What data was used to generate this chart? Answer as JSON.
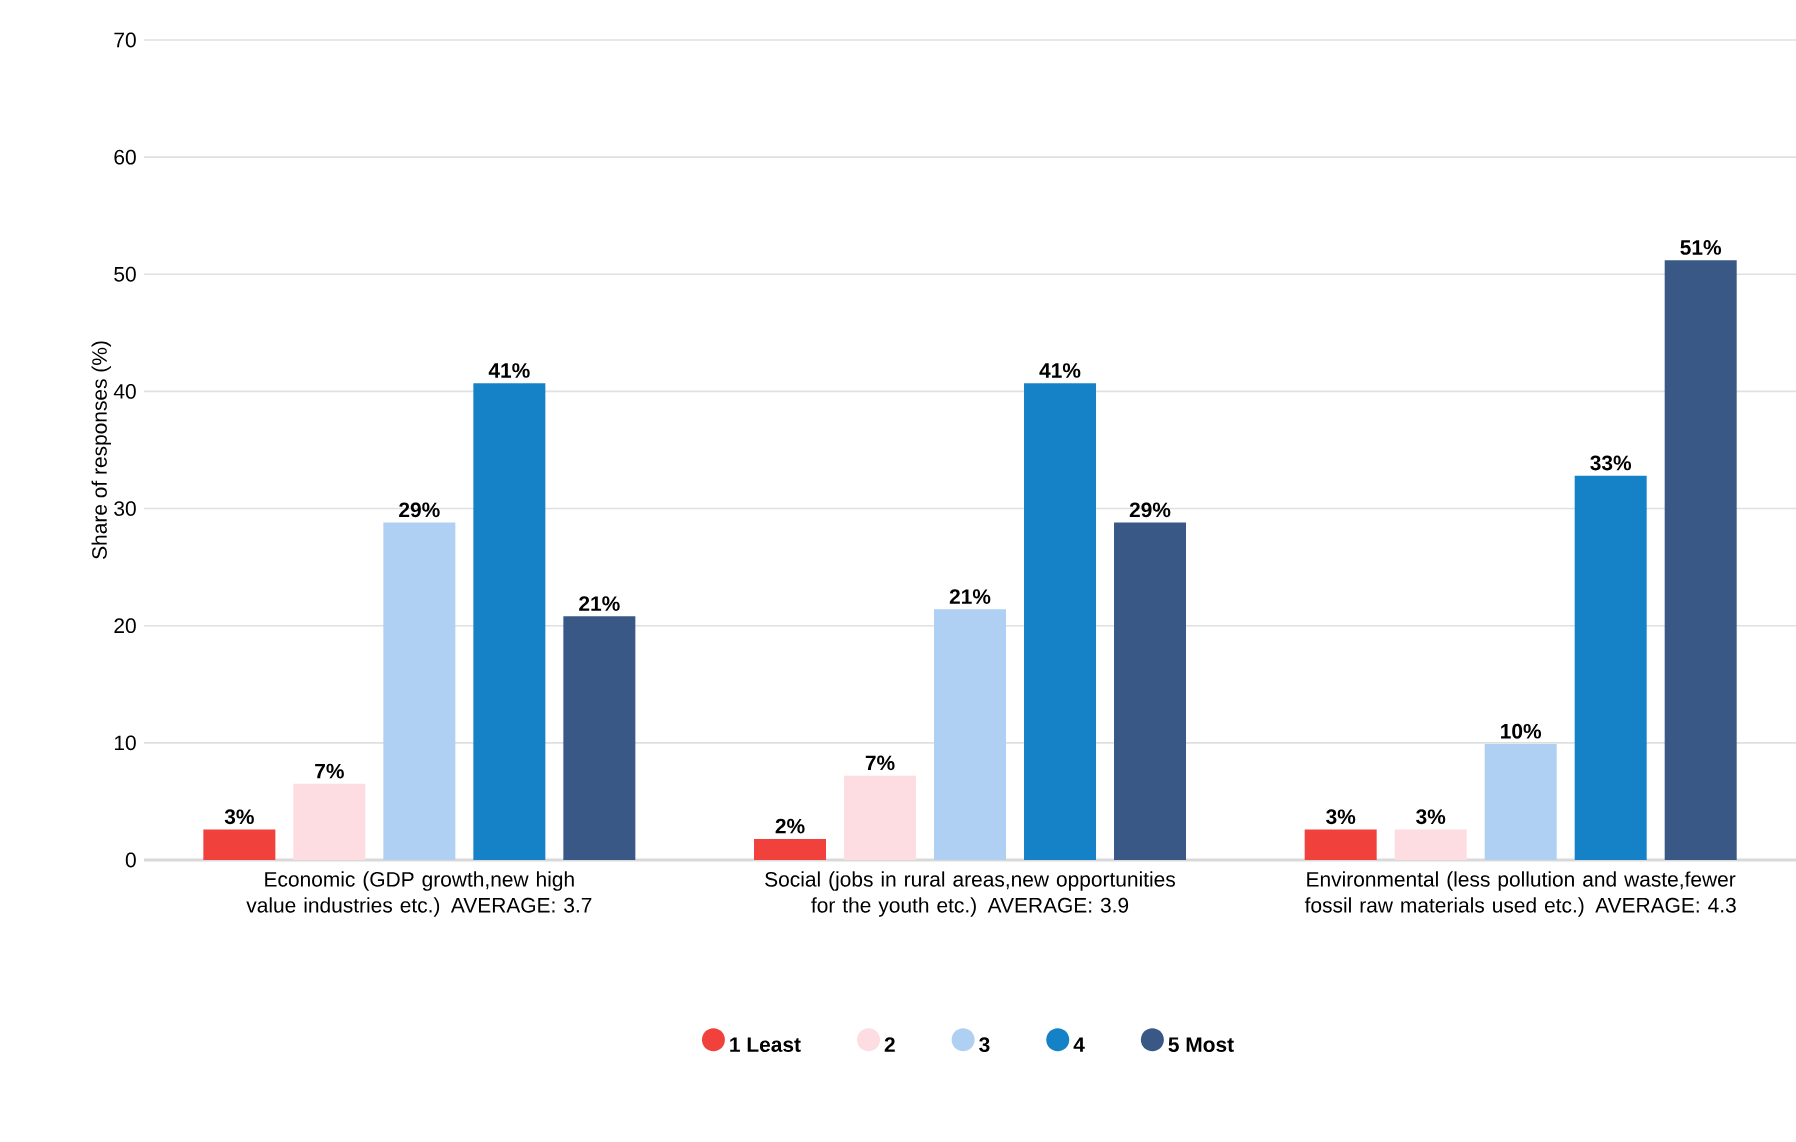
{
  "chart_data": {
    "type": "bar",
    "ylabel": "Share of responses (%)",
    "categories": [
      "Economic (GDP growth,new high value industries etc.) AVERAGE: 3.7",
      "Social (jobs in rural areas,new opportunities for the youth etc.) AVERAGE: 3.9",
      "Environmental (less pollution and waste,fewer fossil raw materials used etc.) AVERAGE: 4.3"
    ],
    "series": [
      {
        "name": "1 Least",
        "color": "#f0413c",
        "values": [
          2.6,
          1.8,
          2.6
        ],
        "value_labels": [
          "3%",
          "2%",
          "3%"
        ]
      },
      {
        "name": "2",
        "color": "#fddce2",
        "values": [
          6.5,
          7.2,
          2.6
        ],
        "value_labels": [
          "7%",
          "7%",
          "3%"
        ]
      },
      {
        "name": "3",
        "color": "#afd0f2",
        "values": [
          28.8,
          21.4,
          9.9
        ],
        "value_labels": [
          "29%",
          "21%",
          "10%"
        ]
      },
      {
        "name": "4",
        "color": "#1582c8",
        "values": [
          40.7,
          40.7,
          32.8
        ],
        "value_labels": [
          "41%",
          "41%",
          "33%"
        ]
      },
      {
        "name": "5 Most",
        "color": "#395886",
        "values": [
          20.8,
          28.8,
          51.2
        ],
        "value_labels": [
          "21%",
          "29%",
          "51%"
        ]
      }
    ],
    "ylim": [
      0,
      70
    ],
    "yticks": [
      0,
      10,
      20,
      30,
      40,
      50,
      60,
      70
    ],
    "grid": "y",
    "legend": "bottom",
    "marker": "circle"
  }
}
